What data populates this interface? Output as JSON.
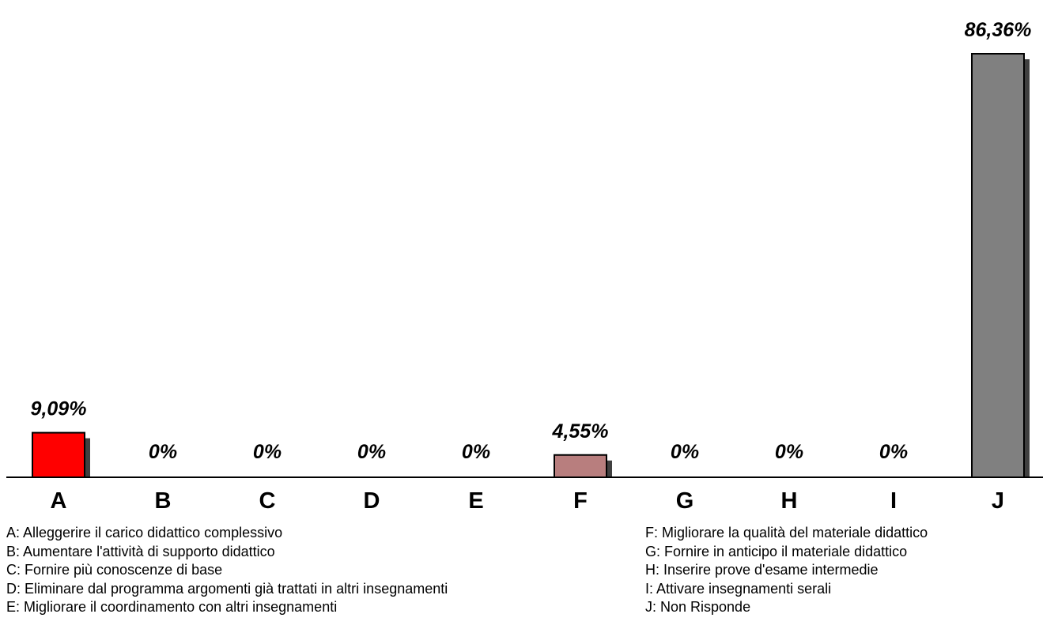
{
  "chart_data": {
    "type": "bar",
    "categories": [
      "A",
      "B",
      "C",
      "D",
      "E",
      "F",
      "G",
      "H",
      "I",
      "J"
    ],
    "values": [
      9.09,
      0,
      0,
      0,
      0,
      4.55,
      0,
      0,
      0,
      86.36
    ],
    "value_labels": [
      "9,09%",
      "0%",
      "0%",
      "0%",
      "0%",
      "4,55%",
      "0%",
      "0%",
      "0%",
      "86,36%"
    ],
    "bar_colors": [
      "#ff0000",
      "#b87e7e",
      "#b87e7e",
      "#b87e7e",
      "#b87e7e",
      "#b87e7e",
      "#808080",
      "#808080",
      "#808080",
      "#808080"
    ],
    "shadow_color": "#404040",
    "ylim": [
      0,
      86.36
    ],
    "grid": false,
    "legend_position": "bottom"
  },
  "legend": {
    "left": [
      "A: Alleggerire il carico didattico complessivo",
      "B: Aumentare l'attività di supporto didattico",
      "C: Fornire più conoscenze di base",
      "D: Eliminare dal programma argomenti già trattati in altri insegnamenti",
      "E: Migliorare il coordinamento con altri insegnamenti"
    ],
    "right": [
      "F: Migliorare la qualità del materiale didattico",
      "G: Fornire in anticipo il materiale didattico",
      "H: Inserire prove d'esame intermedie",
      "I: Attivare insegnamenti serali",
      "J: Non Risponde"
    ]
  }
}
